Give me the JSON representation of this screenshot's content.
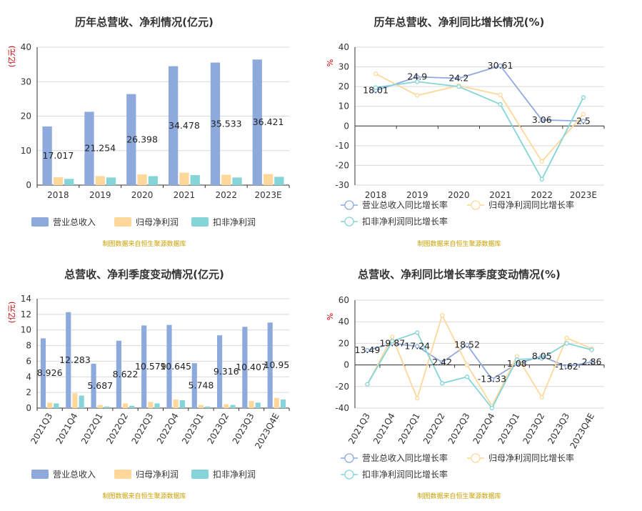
{
  "colors": {
    "revenue": "#8eaadc",
    "parent_profit": "#fdd89a",
    "deducted_profit": "#84d4d8",
    "source_text": "#c8a000"
  },
  "chart_data": [
    {
      "id": "annual-amount",
      "type": "bar",
      "title": "历年总营收、净利情况(亿元)",
      "ylabel": "(亿元)",
      "ylim": [
        0,
        40
      ],
      "yticks": [
        0,
        10,
        20,
        30,
        40
      ],
      "categories": [
        "2018",
        "2019",
        "2020",
        "2021",
        "2022",
        "2023E"
      ],
      "series": [
        {
          "name": "营业总收入",
          "values": [
            17.017,
            21.254,
            26.398,
            34.478,
            35.533,
            36.421
          ],
          "labels": [
            "17.017",
            "21.254",
            "26.398",
            "34.478",
            "35.533",
            "36.421"
          ]
        },
        {
          "name": "归母净利润",
          "values": [
            2.3,
            2.6,
            3.1,
            3.6,
            3.0,
            3.2
          ]
        },
        {
          "name": "扣非净利润",
          "values": [
            1.8,
            2.2,
            2.6,
            2.9,
            2.2,
            2.4
          ]
        }
      ],
      "source": "制图数据来自恒生聚源数据库"
    },
    {
      "id": "annual-yoy",
      "type": "line",
      "title": "历年总营收、净利同比增长情况(%)",
      "ylabel": "%",
      "ylim": [
        -30,
        40
      ],
      "yticks": [
        -30,
        -20,
        -10,
        0,
        10,
        20,
        30,
        40
      ],
      "categories": [
        "2018",
        "2019",
        "2020",
        "2021",
        "2022",
        "2023E"
      ],
      "series": [
        {
          "name": "营业总收入同比增长率",
          "values": [
            18.01,
            24.9,
            24.2,
            30.61,
            3.06,
            2.5
          ],
          "labels": [
            "18.01",
            "24.9",
            "24.2",
            "30.61",
            "3.06",
            "2.5"
          ]
        },
        {
          "name": "归母净利润同比增长率",
          "values": [
            26.5,
            15.5,
            20.5,
            15.8,
            -18.0,
            6.0
          ]
        },
        {
          "name": "扣非净利润同比增长率",
          "values": [
            19.5,
            22.5,
            20.0,
            11.0,
            -27.0,
            14.5
          ]
        }
      ],
      "source": "制图数据来自恒生聚源数据库"
    },
    {
      "id": "quarterly-amount",
      "type": "bar",
      "title": "总营收、净利季度变动情况(亿元)",
      "ylabel": "(亿元)",
      "ylim": [
        0,
        14
      ],
      "yticks": [
        0,
        2,
        4,
        6,
        8,
        10,
        12,
        14
      ],
      "categories": [
        "2021Q3",
        "2021Q4",
        "2022Q1",
        "2022Q2",
        "2022Q3",
        "2022Q4",
        "2023Q1",
        "2023Q2",
        "2023Q3",
        "2023Q4E"
      ],
      "series": [
        {
          "name": "营业总收入",
          "values": [
            8.926,
            12.283,
            5.687,
            8.622,
            10.579,
            10.645,
            5.748,
            9.316,
            10.407,
            10.95
          ],
          "labels": [
            "8.926",
            "12.283",
            "5.687",
            "8.622",
            "10.579",
            "10.645",
            "5.748",
            "9.316",
            "10.407",
            "10.95"
          ]
        },
        {
          "name": "归母净利润",
          "values": [
            0.7,
            1.9,
            0.4,
            0.6,
            0.8,
            1.1,
            0.4,
            0.5,
            0.9,
            1.3
          ]
        },
        {
          "name": "扣非净利润",
          "values": [
            0.6,
            1.6,
            0.2,
            0.3,
            0.6,
            1.0,
            0.2,
            0.4,
            0.7,
            1.1
          ]
        }
      ],
      "source": "制图数据来自恒生聚源数据库"
    },
    {
      "id": "quarterly-yoy",
      "type": "line",
      "title": "总营收、净利同比增长率季度变动情况(%)",
      "ylabel": "%",
      "ylim": [
        -40,
        60
      ],
      "yticks": [
        -40,
        -20,
        0,
        20,
        40,
        60
      ],
      "categories": [
        "2021Q3",
        "2021Q4",
        "2022Q1",
        "2022Q2",
        "2022Q3",
        "2022Q4",
        "2023Q1",
        "2023Q2",
        "2023Q3",
        "2023Q4E"
      ],
      "series": [
        {
          "name": "营业总收入同比增长率",
          "values": [
            13.49,
            19.87,
            17.24,
            2.42,
            18.52,
            -13.33,
            1.08,
            8.05,
            -1.62,
            2.86
          ],
          "labels": [
            "13.49",
            "19.87",
            "17.24",
            "2.42",
            "18.52",
            "-13.33",
            "1.08",
            "8.05",
            "-1.62",
            "2.86"
          ]
        },
        {
          "name": "归母净利润同比增长率",
          "values": [
            -18,
            26,
            -31,
            46,
            0,
            -38,
            8,
            -30,
            25,
            15
          ]
        },
        {
          "name": "扣非净利润同比增长率",
          "values": [
            -18,
            22,
            30,
            -17,
            -11,
            -40,
            5,
            6,
            20,
            14
          ]
        }
      ],
      "source": "制图数据来自恒生聚源数据库"
    }
  ]
}
